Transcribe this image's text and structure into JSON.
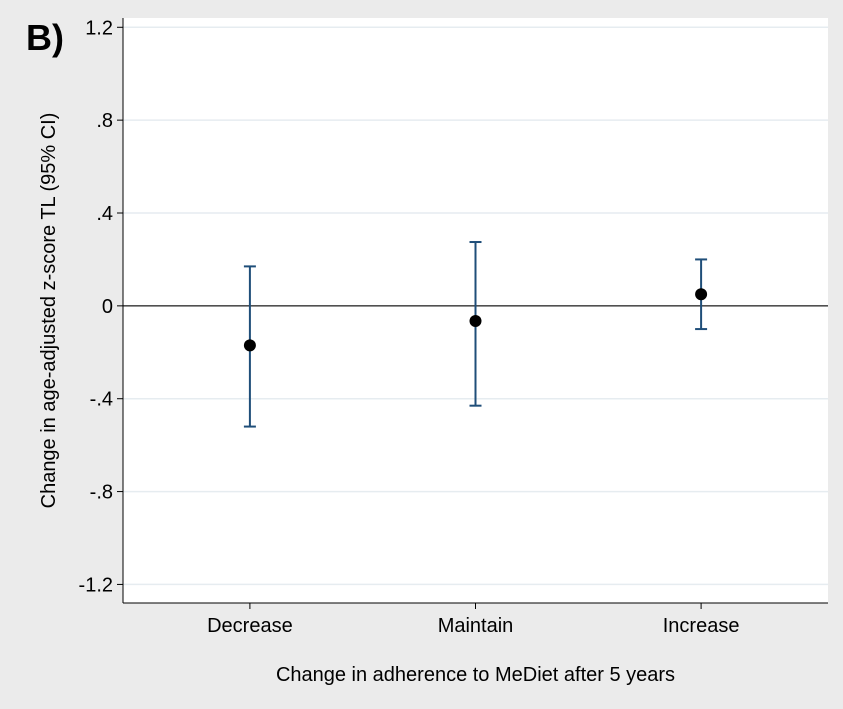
{
  "panel_label": "B)",
  "colors": {
    "background": "#ebebeb",
    "plot_area": "#ffffff",
    "gridline": "#e6ecf0",
    "error_bar": "#1f4e79",
    "point": "#000000",
    "reference_line": "#505050"
  },
  "chart_data": {
    "type": "scatter",
    "title": "",
    "xlabel": "Change in adherence to MeDiet after 5 years",
    "ylabel": "Change in age-adjusted z-score TL (95% CI)",
    "categories": [
      "Decrease",
      "Maintain",
      "Increase"
    ],
    "estimates": [
      -0.17,
      -0.065,
      0.05
    ],
    "ci_lower": [
      -0.52,
      -0.43,
      -0.1
    ],
    "ci_upper": [
      0.17,
      0.275,
      0.2
    ],
    "ylim": [
      -1.28,
      1.24
    ],
    "yticks": [
      1.2,
      0.8,
      0.4,
      0,
      -0.4,
      -0.8,
      -1.2
    ],
    "ytick_labels": [
      "1.2",
      ".8",
      ".4",
      "0",
      "-.4",
      "-.8",
      "-1.2"
    ],
    "reference_line_y": 0,
    "grid": true,
    "legend": "none"
  }
}
